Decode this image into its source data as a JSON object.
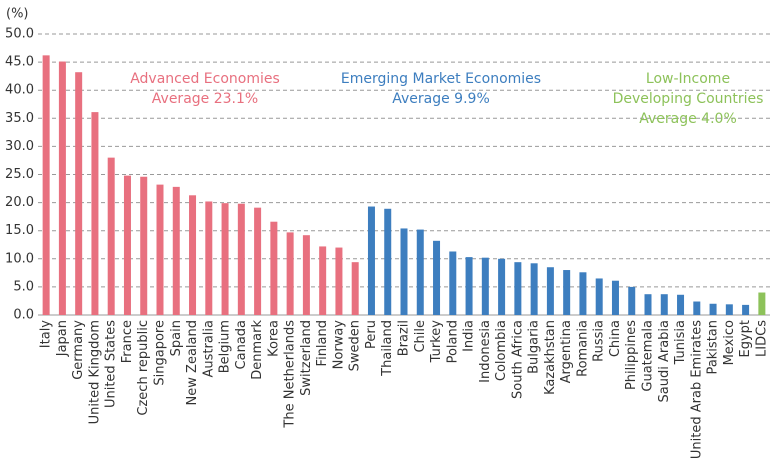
{
  "chart_data": {
    "type": "bar",
    "unit_label": "(%)",
    "categories": [
      "Italy",
      "Japan",
      "Germany",
      "United Kingdom",
      "United States",
      "France",
      "Czech republic",
      "Singapore",
      "Spain",
      "New Zealand",
      "Australia",
      "Belgium",
      "Canada",
      "Denmark",
      "Korea",
      "The Netherlands",
      "Switzerland",
      "Finland",
      "Norway",
      "Sweden",
      "Peru",
      "Thailand",
      "Brazil",
      "Chile",
      "Turkey",
      "Poland",
      "India",
      "Indonesia",
      "Colombia",
      "South Africa",
      "Bulgaria",
      "Kazakhstan",
      "Argentina",
      "Romania",
      "Russia",
      "China",
      "Philippines",
      "Guatemala",
      "Saudi Arabia",
      "Tunisia",
      "United Arab Emirates",
      "Pakistan",
      "Mexico",
      "Egypt",
      "LIDCs"
    ],
    "values": [
      46.2,
      45.1,
      43.2,
      36.1,
      28.0,
      24.8,
      24.6,
      23.2,
      22.8,
      21.3,
      20.2,
      19.9,
      19.8,
      19.1,
      16.6,
      14.7,
      14.2,
      12.2,
      12.0,
      9.4,
      19.3,
      18.9,
      15.4,
      15.2,
      13.2,
      11.3,
      10.3,
      10.2,
      10.0,
      9.4,
      9.2,
      8.5,
      8.0,
      7.6,
      6.5,
      6.1,
      5.0,
      3.7,
      3.7,
      3.6,
      2.4,
      2.0,
      1.9,
      1.8,
      4.0
    ],
    "colors": [
      "#e8707f",
      "#e8707f",
      "#e8707f",
      "#e8707f",
      "#e8707f",
      "#e8707f",
      "#e8707f",
      "#e8707f",
      "#e8707f",
      "#e8707f",
      "#e8707f",
      "#e8707f",
      "#e8707f",
      "#e8707f",
      "#e8707f",
      "#e8707f",
      "#e8707f",
      "#e8707f",
      "#e8707f",
      "#e8707f",
      "#3d7ebf",
      "#3d7ebf",
      "#3d7ebf",
      "#3d7ebf",
      "#3d7ebf",
      "#3d7ebf",
      "#3d7ebf",
      "#3d7ebf",
      "#3d7ebf",
      "#3d7ebf",
      "#3d7ebf",
      "#3d7ebf",
      "#3d7ebf",
      "#3d7ebf",
      "#3d7ebf",
      "#3d7ebf",
      "#3d7ebf",
      "#3d7ebf",
      "#3d7ebf",
      "#3d7ebf",
      "#3d7ebf",
      "#3d7ebf",
      "#3d7ebf",
      "#3d7ebf",
      "#8dc25a"
    ],
    "ylim": [
      0,
      50
    ],
    "yticks": [
      {
        "value": 0,
        "label": "0.0"
      },
      {
        "value": 5,
        "label": "5.0"
      },
      {
        "value": 10,
        "label": "10.0"
      },
      {
        "value": 15,
        "label": "15.0"
      },
      {
        "value": 20,
        "label": "20.0"
      },
      {
        "value": 25,
        "label": "25.0"
      },
      {
        "value": 30,
        "label": "30.0"
      },
      {
        "value": 35,
        "label": "35.0"
      },
      {
        "value": 40,
        "label": "40.0"
      },
      {
        "value": 45,
        "label": "45.0"
      },
      {
        "value": 50,
        "label": "50.0"
      }
    ],
    "grid": true,
    "annotations": [
      {
        "lines": [
          "Advanced Economies",
          "Average 23.1%"
        ],
        "color": "#e8707f"
      },
      {
        "lines": [
          "Emerging Market Economies",
          "Average 9.9%"
        ],
        "color": "#3d7ebf"
      },
      {
        "lines": [
          "Low-Income",
          "Developing Countries",
          "Average 4.0%"
        ],
        "color": "#8dc25a"
      }
    ]
  }
}
